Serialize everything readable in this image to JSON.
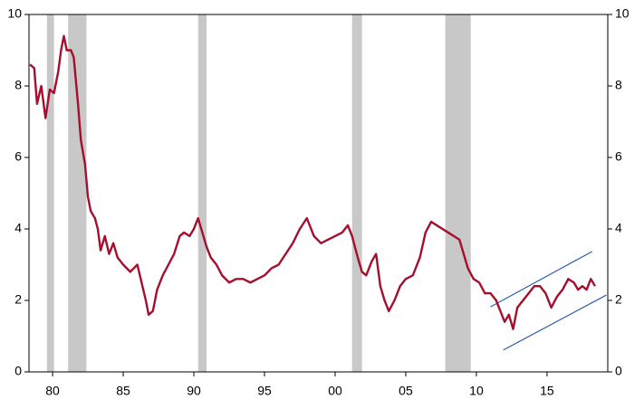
{
  "chart_data": {
    "type": "line",
    "x": [
      1978.4,
      1978.7,
      1978.9,
      1979.2,
      1979.5,
      1979.8,
      1980.1,
      1980.4,
      1980.6,
      1980.8,
      1981.0,
      1981.3,
      1981.5,
      1981.8,
      1982.0,
      1982.3,
      1982.5,
      1982.7,
      1983.0,
      1983.2,
      1983.4,
      1983.7,
      1984.0,
      1984.3,
      1984.6,
      1985.0,
      1985.5,
      1986.0,
      1986.3,
      1986.6,
      1986.8,
      1987.1,
      1987.4,
      1987.8,
      1988.2,
      1988.6,
      1989.0,
      1989.3,
      1989.7,
      1990.0,
      1990.3,
      1990.6,
      1990.9,
      1991.2,
      1991.6,
      1992.0,
      1992.5,
      1993.0,
      1993.5,
      1994.0,
      1994.5,
      1995.0,
      1995.5,
      1996.0,
      1996.5,
      1997.0,
      1997.5,
      1998.0,
      1998.5,
      1999.0,
      1999.5,
      2000.0,
      2000.5,
      2000.9,
      2001.2,
      2001.6,
      2001.9,
      2002.2,
      2002.6,
      2002.9,
      2003.2,
      2003.5,
      2003.8,
      2004.2,
      2004.6,
      2005.0,
      2005.5,
      2006.0,
      2006.4,
      2006.8,
      2007.2,
      2007.6,
      2008.0,
      2008.4,
      2008.8,
      2009.1,
      2009.4,
      2009.8,
      2010.2,
      2010.6,
      2011.0,
      2011.4,
      2011.7,
      2012.0,
      2012.3,
      2012.6,
      2012.9,
      2013.3,
      2013.7,
      2014.1,
      2014.5,
      2014.9,
      2015.3,
      2015.7,
      2016.1,
      2016.5,
      2016.9,
      2017.2,
      2017.5,
      2017.8,
      2018.1,
      2018.4
    ],
    "series": [
      {
        "color": "#a50f2d",
        "values": [
          8.6,
          8.5,
          7.5,
          8.0,
          7.1,
          7.9,
          7.8,
          8.4,
          9.0,
          9.4,
          9.0,
          9.0,
          8.8,
          7.5,
          6.5,
          5.8,
          4.9,
          4.5,
          4.3,
          4.0,
          3.4,
          3.8,
          3.3,
          3.6,
          3.2,
          3.0,
          2.8,
          3.0,
          2.5,
          2.0,
          1.6,
          1.7,
          2.3,
          2.7,
          3.0,
          3.3,
          3.8,
          3.9,
          3.8,
          4.0,
          4.3,
          3.9,
          3.5,
          3.2,
          3.0,
          2.7,
          2.5,
          2.6,
          2.6,
          2.5,
          2.6,
          2.7,
          2.9,
          3.0,
          3.3,
          3.6,
          4.0,
          4.3,
          3.8,
          3.6,
          3.7,
          3.8,
          3.9,
          4.1,
          3.8,
          3.2,
          2.8,
          2.7,
          3.1,
          3.3,
          2.4,
          2.0,
          1.7,
          2.0,
          2.4,
          2.6,
          2.7,
          3.2,
          3.9,
          4.2,
          4.1,
          4.0,
          3.9,
          3.8,
          3.7,
          3.3,
          2.9,
          2.6,
          2.5,
          2.2,
          2.2,
          2.0,
          1.7,
          1.4,
          1.6,
          1.2,
          1.8,
          2.0,
          2.2,
          2.4,
          2.4,
          2.2,
          1.8,
          2.1,
          2.3,
          2.6,
          2.5,
          2.3,
          2.4,
          2.3,
          2.6,
          2.4
        ]
      }
    ],
    "trend_lines": [
      {
        "color": "#2e5fa8",
        "x": [
          2011.0,
          2018.2
        ],
        "values": [
          1.82,
          3.37
        ]
      },
      {
        "color": "#2e5fa8",
        "x": [
          2011.9,
          2019.2
        ],
        "values": [
          0.61,
          2.15
        ]
      }
    ],
    "recessions": [
      [
        1979.6,
        1980.1
      ],
      [
        1981.1,
        1982.4
      ],
      [
        1990.3,
        1990.9
      ],
      [
        2001.2,
        2001.9
      ],
      [
        2007.8,
        2009.6
      ]
    ],
    "recession_color": "#c8c8c8",
    "xlim": [
      1978.33,
      2019.3
    ],
    "xticks": [
      {
        "value": 1980,
        "label": "80"
      },
      {
        "value": 1985,
        "label": "85"
      },
      {
        "value": 1990,
        "label": "90"
      },
      {
        "value": 1995,
        "label": "95"
      },
      {
        "value": 2000,
        "label": "00"
      },
      {
        "value": 2005,
        "label": "05"
      },
      {
        "value": 2010,
        "label": "10"
      },
      {
        "value": 2015,
        "label": "15"
      }
    ],
    "ylim": [
      0,
      10
    ],
    "yticks": [
      0,
      2,
      4,
      6,
      8,
      10
    ],
    "y2lim": [
      0,
      10
    ],
    "y2ticks": [
      0,
      2,
      4,
      6,
      8,
      10
    ]
  }
}
